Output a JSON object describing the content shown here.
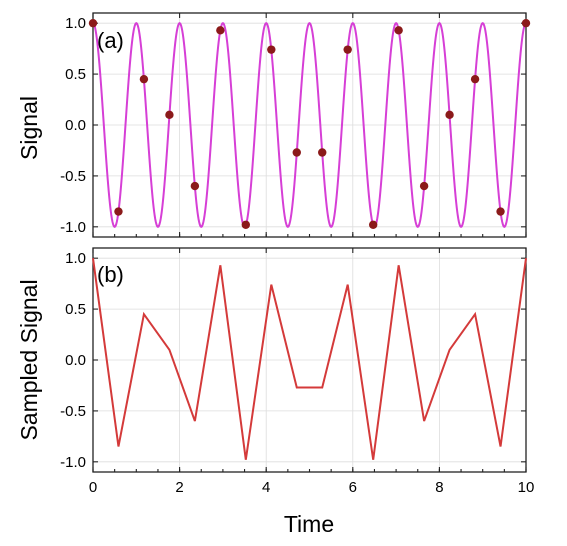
{
  "chart_data": [
    {
      "panel": "(a)",
      "type": "line",
      "ylabel": "Signal",
      "xlabel": "",
      "xlim": [
        0,
        10
      ],
      "ylim": [
        -1.1,
        1.1
      ],
      "xticks": [
        "0",
        "2",
        "4",
        "6",
        "8",
        "10"
      ],
      "yticks": [
        "1.0",
        "0.5",
        "0.0",
        "-0.5",
        "-1.0"
      ],
      "grid": true,
      "series": [
        {
          "kind": "continuous-sine",
          "frequency_cycles_per_time": 1,
          "color": "#d63fd6",
          "x_range": [
            0,
            10
          ]
        },
        {
          "kind": "sample-points",
          "color": "#8b1a1a",
          "x": [
            0,
            0.588,
            1.176,
            1.765,
            2.353,
            2.941,
            3.529,
            4.118,
            4.706,
            5.294,
            5.882,
            6.471,
            7.059,
            7.647,
            8.235,
            8.824,
            9.412,
            10
          ],
          "y": [
            1.0,
            -0.85,
            0.45,
            0.1,
            -0.6,
            0.93,
            -0.98,
            0.74,
            -0.27,
            -0.27,
            0.74,
            -0.98,
            0.93,
            -0.6,
            0.1,
            0.45,
            -0.85,
            1.0
          ]
        }
      ]
    },
    {
      "panel": "(b)",
      "type": "line",
      "ylabel": "Sampled Signal",
      "xlabel": "Time",
      "xlim": [
        0,
        10
      ],
      "ylim": [
        -1.1,
        1.1
      ],
      "xticks": [
        "0",
        "2",
        "4",
        "6",
        "8",
        "10"
      ],
      "yticks": [
        "1.0",
        "0.5",
        "0.0",
        "-0.5",
        "-1.0"
      ],
      "grid": true,
      "series": [
        {
          "kind": "polyline",
          "color": "#d43a3a",
          "x": [
            0,
            0.588,
            1.176,
            1.765,
            2.353,
            2.941,
            3.529,
            4.118,
            4.706,
            5.294,
            5.882,
            6.471,
            7.059,
            7.647,
            8.235,
            8.824,
            9.412,
            10
          ],
          "y": [
            1.0,
            -0.85,
            0.45,
            0.1,
            -0.6,
            0.93,
            -0.98,
            0.74,
            -0.27,
            -0.27,
            0.74,
            -0.98,
            0.93,
            -0.6,
            0.1,
            0.45,
            -0.85,
            1.0
          ]
        }
      ]
    }
  ]
}
